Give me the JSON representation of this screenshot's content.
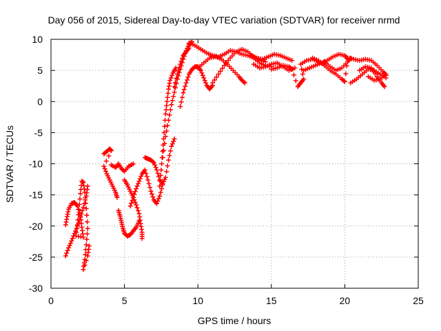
{
  "chart_data": {
    "type": "scatter",
    "title": "Day 056 of 2015, Sidereal Day-to-day VTEC variation (SDTVAR) for receiver nrmd",
    "xlabel": "GPS time / hours",
    "ylabel": "SDTVAR / TECUs",
    "xlim": [
      0,
      25
    ],
    "ylim": [
      -30,
      10
    ],
    "xticks": [
      0,
      5,
      10,
      15,
      20,
      25
    ],
    "yticks": [
      -30,
      -25,
      -20,
      -15,
      -10,
      -5,
      0,
      5,
      10
    ],
    "grid": true,
    "marker": "plus",
    "color": "#ff0000",
    "series": [
      {
        "points": [
          [
            1.0,
            -24.8
          ],
          [
            1.2,
            -23.5
          ],
          [
            1.4,
            -22.4
          ],
          [
            1.6,
            -21.2
          ],
          [
            1.8,
            -20.0
          ],
          [
            2.0,
            -18.6
          ],
          [
            2.2,
            -17.0
          ],
          [
            2.4,
            -15.2
          ],
          [
            2.5,
            -13.6
          ],
          [
            1.0,
            -19.8
          ],
          [
            1.1,
            -18.5
          ],
          [
            1.2,
            -17.3
          ],
          [
            1.4,
            -16.4
          ],
          [
            1.6,
            -16.2
          ],
          [
            1.8,
            -16.8
          ],
          [
            2.0,
            -18.4
          ],
          [
            2.1,
            -20.2
          ],
          [
            2.2,
            -21.8
          ],
          [
            1.7,
            -21.6
          ],
          [
            1.8,
            -19.8
          ],
          [
            1.9,
            -17.4
          ],
          [
            2.0,
            -14.8
          ],
          [
            2.1,
            -12.8
          ],
          [
            2.2,
            -13.0
          ],
          [
            2.3,
            -14.6
          ],
          [
            2.4,
            -17.2
          ],
          [
            2.5,
            -20.4
          ],
          [
            2.4,
            -23.0
          ],
          [
            2.3,
            -25.4
          ],
          [
            2.2,
            -27.0
          ],
          [
            2.5,
            -24.8
          ],
          [
            2.6,
            -23.2
          ],
          [
            3.6,
            -8.4
          ],
          [
            3.8,
            -8.0
          ],
          [
            4.0,
            -7.6
          ],
          [
            4.1,
            -7.9
          ],
          [
            3.6,
            -10.4
          ],
          [
            3.8,
            -11.6
          ],
          [
            4.0,
            -12.6
          ],
          [
            4.2,
            -13.6
          ],
          [
            4.4,
            -14.6
          ],
          [
            4.5,
            -15.4
          ],
          [
            4.1,
            -10.2
          ],
          [
            4.4,
            -10.6
          ],
          [
            4.6,
            -10.0
          ],
          [
            4.8,
            -10.8
          ],
          [
            5.0,
            -11.2
          ],
          [
            5.3,
            -10.4
          ],
          [
            5.6,
            -10.0
          ],
          [
            4.6,
            -17.5
          ],
          [
            4.7,
            -18.4
          ],
          [
            4.8,
            -19.4
          ],
          [
            4.9,
            -20.4
          ],
          [
            5.0,
            -21.2
          ],
          [
            5.2,
            -21.6
          ],
          [
            5.4,
            -21.4
          ],
          [
            5.6,
            -20.8
          ],
          [
            5.8,
            -20.2
          ],
          [
            6.0,
            -19.2
          ],
          [
            5.0,
            -12.6
          ],
          [
            5.2,
            -13.4
          ],
          [
            5.4,
            -14.4
          ],
          [
            5.6,
            -15.4
          ],
          [
            5.8,
            -16.6
          ],
          [
            6.0,
            -18.0
          ],
          [
            6.1,
            -19.6
          ],
          [
            6.2,
            -21.0
          ],
          [
            6.2,
            -22.0
          ],
          [
            5.4,
            -16.8
          ],
          [
            5.6,
            -15.4
          ],
          [
            5.8,
            -14.0
          ],
          [
            6.0,
            -12.8
          ],
          [
            6.2,
            -11.6
          ],
          [
            6.4,
            -11.0
          ],
          [
            6.6,
            -12.6
          ],
          [
            6.8,
            -14.4
          ],
          [
            7.0,
            -15.8
          ],
          [
            7.2,
            -16.4
          ],
          [
            7.4,
            -15.2
          ],
          [
            7.6,
            -13.4
          ],
          [
            6.4,
            -9.0
          ],
          [
            6.6,
            -9.2
          ],
          [
            6.8,
            -9.4
          ],
          [
            7.0,
            -9.8
          ],
          [
            7.2,
            -11.0
          ],
          [
            7.4,
            -12.6
          ],
          [
            7.6,
            -13.2
          ],
          [
            7.8,
            -12.2
          ],
          [
            8.0,
            -9.4
          ],
          [
            8.2,
            -7.2
          ],
          [
            8.4,
            -6.0
          ],
          [
            7.4,
            -13.6
          ],
          [
            7.5,
            -11.0
          ],
          [
            7.6,
            -8.0
          ],
          [
            7.7,
            -5.0
          ],
          [
            7.8,
            -2.0
          ],
          [
            7.9,
            0.0
          ],
          [
            8.0,
            2.0
          ],
          [
            8.1,
            3.4
          ],
          [
            8.3,
            4.6
          ],
          [
            8.5,
            5.4
          ],
          [
            7.6,
            -9.0
          ],
          [
            7.8,
            -5.6
          ],
          [
            8.0,
            -3.0
          ],
          [
            8.2,
            -0.5
          ],
          [
            8.4,
            1.5
          ],
          [
            8.6,
            3.6
          ],
          [
            8.8,
            5.2
          ],
          [
            9.0,
            6.8
          ],
          [
            9.2,
            8.2
          ],
          [
            9.4,
            9.2
          ],
          [
            9.6,
            9.6
          ],
          [
            8.4,
            2.4
          ],
          [
            8.6,
            4.4
          ],
          [
            8.8,
            6.0
          ],
          [
            9.0,
            7.4
          ],
          [
            9.2,
            8.0
          ],
          [
            9.4,
            8.6
          ],
          [
            8.8,
            -0.8
          ],
          [
            9.0,
            1.4
          ],
          [
            9.2,
            3.0
          ],
          [
            9.4,
            4.4
          ],
          [
            9.6,
            5.2
          ],
          [
            9.8,
            5.6
          ],
          [
            10.0,
            5.6
          ],
          [
            10.2,
            5.0
          ],
          [
            10.4,
            3.8
          ],
          [
            10.6,
            2.6
          ],
          [
            10.8,
            2.0
          ],
          [
            11.0,
            2.6
          ],
          [
            9.4,
            9.4
          ],
          [
            9.8,
            9.0
          ],
          [
            10.2,
            8.4
          ],
          [
            10.6,
            7.8
          ],
          [
            11.0,
            7.4
          ],
          [
            11.4,
            7.2
          ],
          [
            11.8,
            7.6
          ],
          [
            12.2,
            8.2
          ],
          [
            12.6,
            8.0
          ],
          [
            13.0,
            7.6
          ],
          [
            13.4,
            7.4
          ],
          [
            13.8,
            7.0
          ],
          [
            14.2,
            6.2
          ],
          [
            14.6,
            5.8
          ],
          [
            15.0,
            5.6
          ],
          [
            10.0,
            5.4
          ],
          [
            10.4,
            6.2
          ],
          [
            10.8,
            7.0
          ],
          [
            11.2,
            7.2
          ],
          [
            11.6,
            6.8
          ],
          [
            12.0,
            6.0
          ],
          [
            12.4,
            5.0
          ],
          [
            12.8,
            4.0
          ],
          [
            13.0,
            3.4
          ],
          [
            13.2,
            3.0
          ],
          [
            11.0,
            3.0
          ],
          [
            11.4,
            4.4
          ],
          [
            11.8,
            5.8
          ],
          [
            12.2,
            7.0
          ],
          [
            12.6,
            8.0
          ],
          [
            13.0,
            8.4
          ],
          [
            13.4,
            8.0
          ],
          [
            13.8,
            7.2
          ],
          [
            14.2,
            6.6
          ],
          [
            14.6,
            6.4
          ],
          [
            13.6,
            7.4
          ],
          [
            14.0,
            7.0
          ],
          [
            14.4,
            6.8
          ],
          [
            14.8,
            7.2
          ],
          [
            15.2,
            7.6
          ],
          [
            15.6,
            7.4
          ],
          [
            16.0,
            7.0
          ],
          [
            16.4,
            6.6
          ],
          [
            13.8,
            6.0
          ],
          [
            14.2,
            5.4
          ],
          [
            14.6,
            5.6
          ],
          [
            15.0,
            6.0
          ],
          [
            15.4,
            6.2
          ],
          [
            15.8,
            5.6
          ],
          [
            16.2,
            5.0
          ],
          [
            16.6,
            5.4
          ],
          [
            15.0,
            5.2
          ],
          [
            15.4,
            5.4
          ],
          [
            15.8,
            5.8
          ],
          [
            16.2,
            5.6
          ],
          [
            16.4,
            5.2
          ],
          [
            16.8,
            2.4
          ],
          [
            17.0,
            3.0
          ],
          [
            17.2,
            3.6
          ],
          [
            17.0,
            6.0
          ],
          [
            17.4,
            6.6
          ],
          [
            17.8,
            6.8
          ],
          [
            18.2,
            6.4
          ],
          [
            18.6,
            6.0
          ],
          [
            17.2,
            5.0
          ],
          [
            17.6,
            5.4
          ],
          [
            18.0,
            5.8
          ],
          [
            18.4,
            6.2
          ],
          [
            18.8,
            6.6
          ],
          [
            19.2,
            7.2
          ],
          [
            19.6,
            7.6
          ],
          [
            20.0,
            7.4
          ],
          [
            20.2,
            6.8
          ],
          [
            18.6,
            6.4
          ],
          [
            19.0,
            5.6
          ],
          [
            19.4,
            5.0
          ],
          [
            19.8,
            5.4
          ],
          [
            20.2,
            6.4
          ],
          [
            20.4,
            7.0
          ],
          [
            17.8,
            7.0
          ],
          [
            18.2,
            6.6
          ],
          [
            18.6,
            5.8
          ],
          [
            19.0,
            5.0
          ],
          [
            19.4,
            4.4
          ],
          [
            19.8,
            3.6
          ],
          [
            20.0,
            3.2
          ],
          [
            20.2,
            7.0
          ],
          [
            20.6,
            6.8
          ],
          [
            21.0,
            6.6
          ],
          [
            21.4,
            6.8
          ],
          [
            21.8,
            6.6
          ],
          [
            22.2,
            5.8
          ],
          [
            22.6,
            4.8
          ],
          [
            22.8,
            4.2
          ],
          [
            20.4,
            3.0
          ],
          [
            20.8,
            3.6
          ],
          [
            21.2,
            4.4
          ],
          [
            21.6,
            5.2
          ],
          [
            22.0,
            5.0
          ],
          [
            22.4,
            4.4
          ],
          [
            22.8,
            3.8
          ],
          [
            21.0,
            5.0
          ],
          [
            21.4,
            5.6
          ],
          [
            21.8,
            5.4
          ],
          [
            22.2,
            4.0
          ],
          [
            22.5,
            3.0
          ],
          [
            22.7,
            2.4
          ],
          [
            21.6,
            4.0
          ],
          [
            22.0,
            3.4
          ],
          [
            22.4,
            3.6
          ],
          [
            22.8,
            4.4
          ]
        ]
      }
    ]
  }
}
